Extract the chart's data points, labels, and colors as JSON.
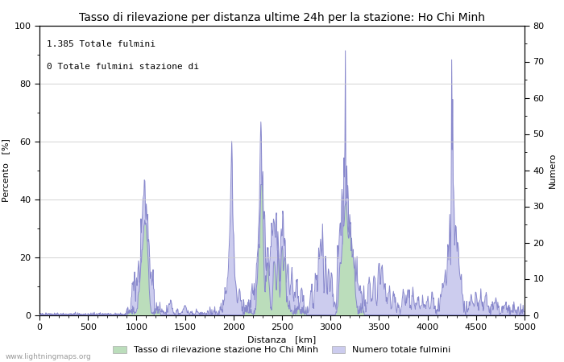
{
  "title": "Tasso di rilevazione per distanza ultime 24h per la stazione: Ho Chi Minh",
  "xlabel": "Distanza   [km]",
  "ylabel_left": "Percento   [%]",
  "ylabel_right": "Numero",
  "annotation_line1": "1.385 Totale fulmini",
  "annotation_line2": "0 Totale fulmini stazione di",
  "legend_label1": "Tasso di rilevazione stazione Ho Chi Minh",
  "legend_label2": "Numero totale fulmini",
  "xlim": [
    0,
    5000
  ],
  "ylim_left": [
    0,
    100
  ],
  "ylim_right": [
    0,
    80
  ],
  "xticks": [
    0,
    500,
    1000,
    1500,
    2000,
    2500,
    3000,
    3500,
    4000,
    4500,
    5000
  ],
  "yticks_left": [
    0,
    20,
    40,
    60,
    80,
    100
  ],
  "yticks_right": [
    0,
    10,
    20,
    30,
    40,
    50,
    60,
    70,
    80
  ],
  "color_line": "#8888cc",
  "color_fill_blue": "#ccccee",
  "color_fill_green": "#bbddbb",
  "watermark": "www.lightningmaps.org",
  "bg_color": "#ffffff",
  "grid_color": "#cccccc",
  "title_fontsize": 10,
  "label_fontsize": 8,
  "tick_fontsize": 8,
  "annot_fontsize": 8
}
